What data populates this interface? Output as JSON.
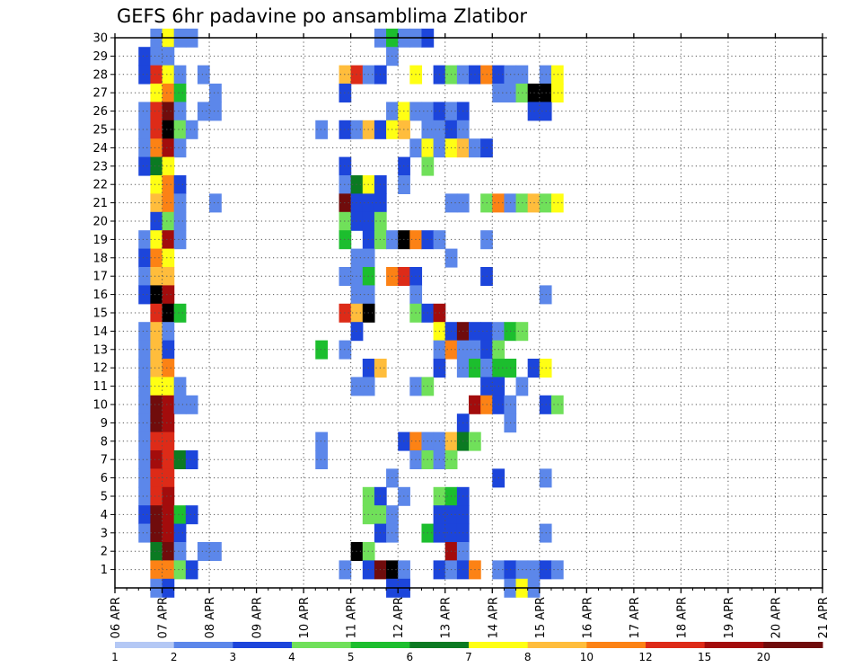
{
  "chart_data": {
    "type": "heatmap",
    "title": "GEFS 6hr padavine po ansamblima Zlatibor",
    "xlabel": "",
    "ylabel": "",
    "x_tick_labels": [
      "06 APR",
      "07 APR",
      "08 APR",
      "09 APR",
      "10 APR",
      "11 APR",
      "12 APR",
      "13 APR",
      "14 APR",
      "15 APR",
      "16 APR",
      "17 APR",
      "18 APR",
      "19 APR",
      "20 APR",
      "21 APR"
    ],
    "x_step": "6 hours",
    "y_tick_labels": [
      "1",
      "2",
      "3",
      "4",
      "5",
      "6",
      "7",
      "8",
      "9",
      "10",
      "11",
      "12",
      "13",
      "14",
      "15",
      "16",
      "17",
      "18",
      "19",
      "20",
      "21",
      "22",
      "23",
      "24",
      "25",
      "26",
      "27",
      "28",
      "29",
      "30"
    ],
    "ylim": [
      0,
      30
    ],
    "grid": true,
    "colorbar": {
      "labels": [
        "1",
        "2",
        "3",
        "4",
        "5",
        "6",
        "7",
        "8",
        "10",
        "12",
        "15",
        "20"
      ],
      "colors": [
        "#b4c8f5",
        "#5c87ea",
        "#1c45db",
        "#70e05a",
        "#1cbe2e",
        "#0b7a22",
        "#ffff14",
        "#ffbd3c",
        "#fc8215",
        "#dd2b18",
        "#a30c0c",
        "#700c0c"
      ]
    },
    "cells": [
      [
        3,
        30,
        1
      ],
      [
        4,
        30,
        6
      ],
      [
        5,
        30,
        1
      ],
      [
        6,
        30,
        1
      ],
      [
        22,
        30,
        1
      ],
      [
        23,
        30,
        4
      ],
      [
        24,
        30,
        1
      ],
      [
        25,
        30,
        1
      ],
      [
        26,
        30,
        2
      ],
      [
        2,
        29,
        2
      ],
      [
        3,
        29,
        1
      ],
      [
        4,
        29,
        1
      ],
      [
        23,
        29,
        1
      ],
      [
        2,
        28,
        2
      ],
      [
        3,
        28,
        9
      ],
      [
        4,
        28,
        6
      ],
      [
        5,
        28,
        1
      ],
      [
        7,
        28,
        1
      ],
      [
        19,
        28,
        7
      ],
      [
        20,
        28,
        9
      ],
      [
        21,
        28,
        1
      ],
      [
        22,
        28,
        2
      ],
      [
        25,
        28,
        6
      ],
      [
        27,
        28,
        2
      ],
      [
        28,
        28,
        3
      ],
      [
        29,
        28,
        1
      ],
      [
        30,
        28,
        2
      ],
      [
        31,
        28,
        8
      ],
      [
        32,
        28,
        2
      ],
      [
        33,
        28,
        1
      ],
      [
        34,
        28,
        1
      ],
      [
        36,
        28,
        1
      ],
      [
        37,
        28,
        6
      ],
      [
        3,
        27,
        6
      ],
      [
        4,
        27,
        8
      ],
      [
        5,
        27,
        4
      ],
      [
        8,
        27,
        1
      ],
      [
        19,
        27,
        2
      ],
      [
        32,
        27,
        1
      ],
      [
        33,
        27,
        1
      ],
      [
        34,
        27,
        3
      ],
      [
        35,
        27,
        12
      ],
      [
        36,
        27,
        12
      ],
      [
        37,
        27,
        6
      ],
      [
        2,
        26,
        1
      ],
      [
        3,
        26,
        9
      ],
      [
        4,
        26,
        11
      ],
      [
        5,
        26,
        1
      ],
      [
        7,
        26,
        1
      ],
      [
        8,
        26,
        1
      ],
      [
        23,
        26,
        1
      ],
      [
        24,
        26,
        6
      ],
      [
        25,
        26,
        1
      ],
      [
        26,
        26,
        1
      ],
      [
        27,
        26,
        2
      ],
      [
        28,
        26,
        1
      ],
      [
        29,
        26,
        2
      ],
      [
        35,
        26,
        2
      ],
      [
        36,
        26,
        2
      ],
      [
        2,
        25,
        1
      ],
      [
        3,
        25,
        9
      ],
      [
        4,
        25,
        12
      ],
      [
        5,
        25,
        3
      ],
      [
        6,
        25,
        1
      ],
      [
        17,
        25,
        1
      ],
      [
        19,
        25,
        2
      ],
      [
        20,
        25,
        1
      ],
      [
        21,
        25,
        7
      ],
      [
        22,
        25,
        2
      ],
      [
        23,
        25,
        6
      ],
      [
        24,
        25,
        7
      ],
      [
        26,
        25,
        1
      ],
      [
        27,
        25,
        1
      ],
      [
        28,
        25,
        2
      ],
      [
        29,
        25,
        1
      ],
      [
        2,
        24,
        1
      ],
      [
        3,
        24,
        8
      ],
      [
        4,
        24,
        10
      ],
      [
        5,
        24,
        1
      ],
      [
        25,
        24,
        1
      ],
      [
        26,
        24,
        6
      ],
      [
        27,
        24,
        1
      ],
      [
        28,
        24,
        6
      ],
      [
        29,
        24,
        7
      ],
      [
        30,
        24,
        1
      ],
      [
        31,
        24,
        2
      ],
      [
        2,
        23,
        2
      ],
      [
        3,
        23,
        5
      ],
      [
        4,
        23,
        6
      ],
      [
        19,
        23,
        2
      ],
      [
        24,
        23,
        2
      ],
      [
        26,
        23,
        3
      ],
      [
        3,
        22,
        6
      ],
      [
        4,
        22,
        8
      ],
      [
        5,
        22,
        2
      ],
      [
        19,
        22,
        1
      ],
      [
        20,
        22,
        5
      ],
      [
        21,
        22,
        6
      ],
      [
        22,
        22,
        2
      ],
      [
        24,
        22,
        1
      ],
      [
        3,
        21,
        7
      ],
      [
        4,
        21,
        8
      ],
      [
        5,
        21,
        1
      ],
      [
        8,
        21,
        1
      ],
      [
        19,
        21,
        11
      ],
      [
        20,
        21,
        2
      ],
      [
        21,
        21,
        2
      ],
      [
        22,
        21,
        2
      ],
      [
        28,
        21,
        1
      ],
      [
        29,
        21,
        1
      ],
      [
        31,
        21,
        3
      ],
      [
        32,
        21,
        8
      ],
      [
        33,
        21,
        1
      ],
      [
        34,
        21,
        3
      ],
      [
        35,
        21,
        7
      ],
      [
        36,
        21,
        3
      ],
      [
        37,
        21,
        6
      ],
      [
        3,
        20,
        2
      ],
      [
        4,
        20,
        3
      ],
      [
        5,
        20,
        1
      ],
      [
        19,
        20,
        3
      ],
      [
        20,
        20,
        2
      ],
      [
        21,
        20,
        2
      ],
      [
        22,
        20,
        3
      ],
      [
        2,
        19,
        1
      ],
      [
        3,
        19,
        6
      ],
      [
        4,
        19,
        10
      ],
      [
        5,
        19,
        1
      ],
      [
        19,
        19,
        4
      ],
      [
        21,
        19,
        2
      ],
      [
        22,
        19,
        3
      ],
      [
        23,
        19,
        1
      ],
      [
        24,
        19,
        12
      ],
      [
        25,
        19,
        8
      ],
      [
        26,
        19,
        2
      ],
      [
        27,
        19,
        1
      ],
      [
        31,
        19,
        1
      ],
      [
        2,
        18,
        2
      ],
      [
        3,
        18,
        8
      ],
      [
        4,
        18,
        6
      ],
      [
        20,
        18,
        1
      ],
      [
        21,
        18,
        1
      ],
      [
        28,
        18,
        1
      ],
      [
        2,
        17,
        1
      ],
      [
        3,
        17,
        7
      ],
      [
        4,
        17,
        7
      ],
      [
        19,
        17,
        1
      ],
      [
        20,
        17,
        1
      ],
      [
        21,
        17,
        4
      ],
      [
        23,
        17,
        8
      ],
      [
        24,
        17,
        9
      ],
      [
        25,
        17,
        2
      ],
      [
        31,
        17,
        2
      ],
      [
        2,
        16,
        2
      ],
      [
        3,
        16,
        12
      ],
      [
        4,
        16,
        10
      ],
      [
        20,
        16,
        1
      ],
      [
        21,
        16,
        1
      ],
      [
        25,
        16,
        1
      ],
      [
        36,
        16,
        1
      ],
      [
        3,
        15,
        9
      ],
      [
        4,
        15,
        12
      ],
      [
        5,
        15,
        4
      ],
      [
        19,
        15,
        9
      ],
      [
        20,
        15,
        7
      ],
      [
        21,
        15,
        12
      ],
      [
        25,
        15,
        3
      ],
      [
        26,
        15,
        2
      ],
      [
        27,
        15,
        10
      ],
      [
        2,
        14,
        1
      ],
      [
        3,
        14,
        7
      ],
      [
        4,
        14,
        1
      ],
      [
        20,
        14,
        2
      ],
      [
        27,
        14,
        6
      ],
      [
        28,
        14,
        2
      ],
      [
        29,
        14,
        11
      ],
      [
        30,
        14,
        2
      ],
      [
        31,
        14,
        2
      ],
      [
        32,
        14,
        1
      ],
      [
        33,
        14,
        4
      ],
      [
        34,
        14,
        3
      ],
      [
        2,
        13,
        1
      ],
      [
        3,
        13,
        7
      ],
      [
        4,
        13,
        2
      ],
      [
        17,
        13,
        4
      ],
      [
        19,
        13,
        1
      ],
      [
        27,
        13,
        1
      ],
      [
        28,
        13,
        8
      ],
      [
        29,
        13,
        1
      ],
      [
        30,
        13,
        1
      ],
      [
        31,
        13,
        2
      ],
      [
        32,
        13,
        3
      ],
      [
        2,
        12,
        1
      ],
      [
        3,
        12,
        7
      ],
      [
        4,
        12,
        8
      ],
      [
        21,
        12,
        2
      ],
      [
        22,
        12,
        7
      ],
      [
        27,
        12,
        2
      ],
      [
        29,
        12,
        1
      ],
      [
        30,
        12,
        4
      ],
      [
        31,
        12,
        1
      ],
      [
        32,
        12,
        4
      ],
      [
        33,
        12,
        4
      ],
      [
        35,
        12,
        2
      ],
      [
        36,
        12,
        6
      ],
      [
        2,
        11,
        1
      ],
      [
        3,
        11,
        6
      ],
      [
        4,
        11,
        6
      ],
      [
        5,
        11,
        1
      ],
      [
        20,
        11,
        1
      ],
      [
        21,
        11,
        1
      ],
      [
        25,
        11,
        1
      ],
      [
        26,
        11,
        3
      ],
      [
        31,
        11,
        2
      ],
      [
        32,
        11,
        2
      ],
      [
        34,
        11,
        1
      ],
      [
        2,
        10,
        1
      ],
      [
        3,
        10,
        11
      ],
      [
        4,
        10,
        10
      ],
      [
        5,
        10,
        1
      ],
      [
        6,
        10,
        1
      ],
      [
        30,
        10,
        10
      ],
      [
        31,
        10,
        8
      ],
      [
        32,
        10,
        2
      ],
      [
        33,
        10,
        1
      ],
      [
        36,
        10,
        2
      ],
      [
        37,
        10,
        3
      ],
      [
        2,
        9,
        1
      ],
      [
        3,
        9,
        11
      ],
      [
        4,
        9,
        10
      ],
      [
        29,
        9,
        2
      ],
      [
        33,
        9,
        1
      ],
      [
        2,
        8,
        1
      ],
      [
        3,
        8,
        9
      ],
      [
        4,
        8,
        9
      ],
      [
        17,
        8,
        1
      ],
      [
        24,
        8,
        2
      ],
      [
        25,
        8,
        8
      ],
      [
        26,
        8,
        1
      ],
      [
        27,
        8,
        1
      ],
      [
        28,
        8,
        7
      ],
      [
        29,
        8,
        5
      ],
      [
        30,
        8,
        3
      ],
      [
        2,
        7,
        1
      ],
      [
        3,
        7,
        10
      ],
      [
        4,
        7,
        9
      ],
      [
        5,
        7,
        5
      ],
      [
        6,
        7,
        2
      ],
      [
        17,
        7,
        1
      ],
      [
        25,
        7,
        1
      ],
      [
        26,
        7,
        3
      ],
      [
        27,
        7,
        1
      ],
      [
        28,
        7,
        3
      ],
      [
        2,
        6,
        1
      ],
      [
        3,
        6,
        9
      ],
      [
        4,
        6,
        9
      ],
      [
        23,
        6,
        1
      ],
      [
        32,
        6,
        2
      ],
      [
        36,
        6,
        1
      ],
      [
        2,
        5,
        1
      ],
      [
        3,
        5,
        9
      ],
      [
        4,
        5,
        10
      ],
      [
        21,
        5,
        3
      ],
      [
        22,
        5,
        2
      ],
      [
        24,
        5,
        1
      ],
      [
        27,
        5,
        3
      ],
      [
        28,
        5,
        4
      ],
      [
        29,
        5,
        2
      ],
      [
        2,
        4,
        2
      ],
      [
        3,
        4,
        11
      ],
      [
        4,
        4,
        10
      ],
      [
        5,
        4,
        4
      ],
      [
        6,
        4,
        2
      ],
      [
        21,
        4,
        3
      ],
      [
        22,
        4,
        3
      ],
      [
        23,
        4,
        1
      ],
      [
        27,
        4,
        2
      ],
      [
        28,
        4,
        2
      ],
      [
        29,
        4,
        2
      ],
      [
        2,
        3,
        1
      ],
      [
        3,
        3,
        11
      ],
      [
        4,
        3,
        10
      ],
      [
        5,
        3,
        2
      ],
      [
        22,
        3,
        2
      ],
      [
        23,
        3,
        1
      ],
      [
        26,
        3,
        4
      ],
      [
        27,
        3,
        2
      ],
      [
        28,
        3,
        2
      ],
      [
        29,
        3,
        2
      ],
      [
        36,
        3,
        1
      ],
      [
        3,
        2,
        5
      ],
      [
        4,
        2,
        11
      ],
      [
        5,
        2,
        1
      ],
      [
        7,
        2,
        1
      ],
      [
        8,
        2,
        1
      ],
      [
        20,
        2,
        12
      ],
      [
        21,
        2,
        3
      ],
      [
        28,
        2,
        10
      ],
      [
        29,
        2,
        1
      ],
      [
        3,
        1,
        8
      ],
      [
        4,
        1,
        8
      ],
      [
        5,
        1,
        3
      ],
      [
        6,
        1,
        2
      ],
      [
        19,
        1,
        1
      ],
      [
        21,
        1,
        2
      ],
      [
        22,
        1,
        11
      ],
      [
        23,
        1,
        12
      ],
      [
        24,
        1,
        1
      ],
      [
        27,
        1,
        2
      ],
      [
        28,
        1,
        1
      ],
      [
        29,
        1,
        2
      ],
      [
        30,
        1,
        8
      ],
      [
        32,
        1,
        1
      ],
      [
        33,
        1,
        2
      ],
      [
        34,
        1,
        1
      ],
      [
        35,
        1,
        1
      ],
      [
        36,
        1,
        2
      ],
      [
        37,
        1,
        1
      ],
      [
        3,
        0,
        1
      ],
      [
        4,
        0,
        2
      ],
      [
        23,
        0,
        2
      ],
      [
        24,
        0,
        2
      ],
      [
        33,
        0,
        1
      ],
      [
        34,
        0,
        6
      ],
      [
        35,
        0,
        1
      ]
    ]
  }
}
